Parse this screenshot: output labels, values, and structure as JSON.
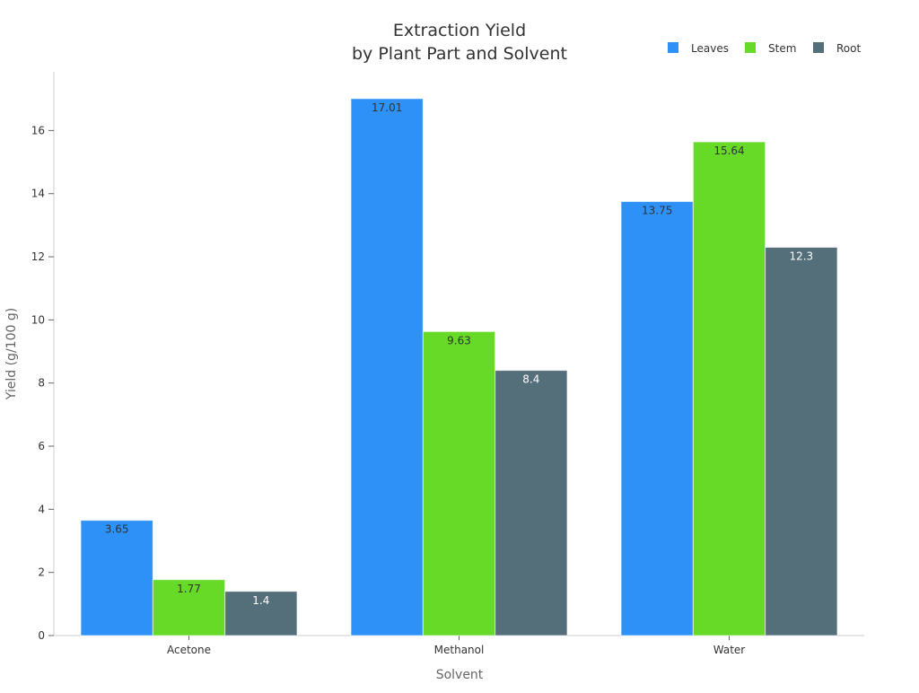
{
  "chart_data": {
    "type": "bar",
    "title_line1": "Extraction Yield",
    "title_line2": "by Plant Part and Solvent",
    "xlabel": "Solvent",
    "ylabel": "Yield (g/100 g)",
    "categories": [
      "Acetone",
      "Methanol",
      "Water"
    ],
    "series": [
      {
        "name": "Leaves",
        "color": "#2E91F7",
        "label_color": "#333333",
        "values": [
          3.65,
          17.01,
          13.75
        ]
      },
      {
        "name": "Stem",
        "color": "#66DA26",
        "label_color": "#333333",
        "values": [
          1.77,
          9.63,
          15.64
        ]
      },
      {
        "name": "Root",
        "color": "#546E7A",
        "label_color": "#FFFFFF",
        "values": [
          1.4,
          8.4,
          12.3
        ]
      }
    ],
    "ylim": [
      0,
      17.86
    ],
    "yticks": [
      0,
      2,
      4,
      6,
      8,
      10,
      12,
      14,
      16
    ],
    "grid": false,
    "legend_position": "top-right"
  }
}
